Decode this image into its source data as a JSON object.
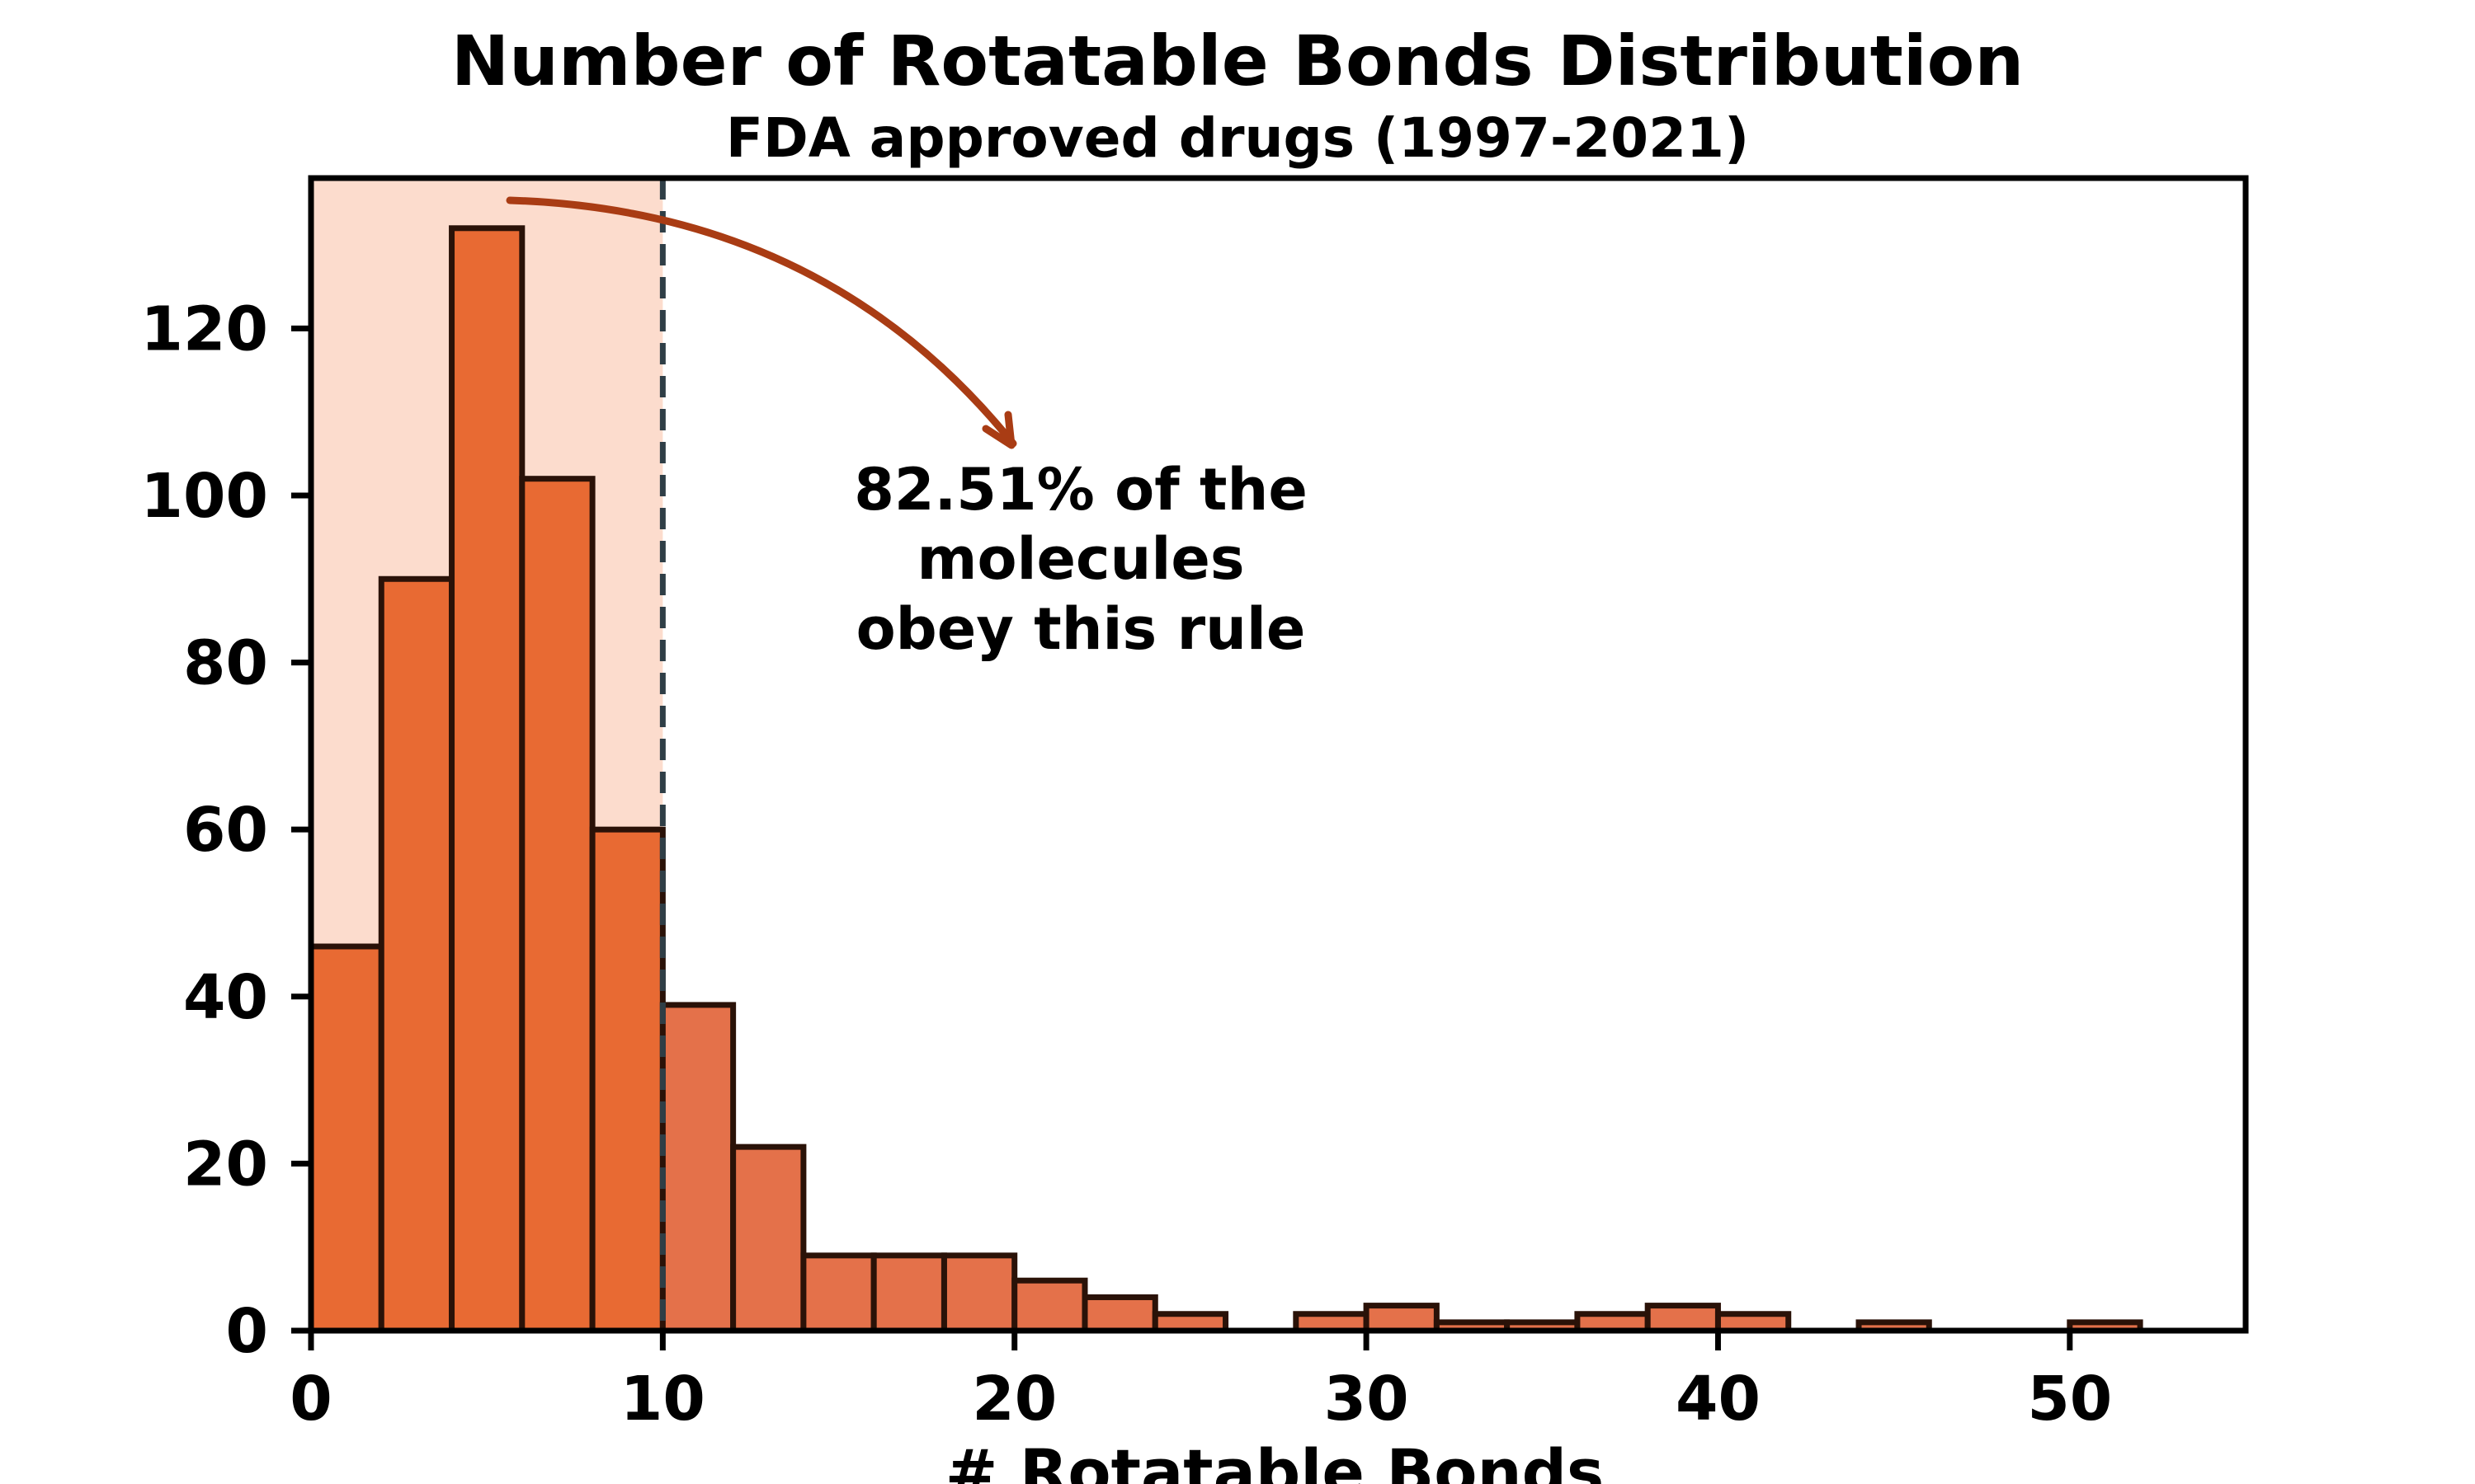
{
  "chart_data": {
    "type": "bar",
    "title": "Number of Rotatable Bonds Distribution",
    "subtitle": "FDA approved drugs (1997-2021)",
    "xlabel": "# Rotatable Bonds",
    "ylabel": "",
    "xlim": [
      0,
      55
    ],
    "ylim": [
      0,
      138
    ],
    "xticks": [
      0,
      10,
      20,
      30,
      40,
      50
    ],
    "yticks": [
      0,
      20,
      40,
      60,
      80,
      100,
      120
    ],
    "bin_width": 2,
    "bins": [
      {
        "x0": 0,
        "x1": 2,
        "count": 46
      },
      {
        "x0": 2,
        "x1": 4,
        "count": 90
      },
      {
        "x0": 4,
        "x1": 6,
        "count": 132
      },
      {
        "x0": 6,
        "x1": 8,
        "count": 102
      },
      {
        "x0": 8,
        "x1": 10,
        "count": 60
      },
      {
        "x0": 10,
        "x1": 12,
        "count": 39
      },
      {
        "x0": 12,
        "x1": 14,
        "count": 22
      },
      {
        "x0": 14,
        "x1": 16,
        "count": 9
      },
      {
        "x0": 16,
        "x1": 18,
        "count": 9
      },
      {
        "x0": 18,
        "x1": 20,
        "count": 9
      },
      {
        "x0": 20,
        "x1": 22,
        "count": 6
      },
      {
        "x0": 22,
        "x1": 24,
        "count": 4
      },
      {
        "x0": 24,
        "x1": 26,
        "count": 2
      },
      {
        "x0": 26,
        "x1": 28,
        "count": 0
      },
      {
        "x0": 28,
        "x1": 30,
        "count": 2
      },
      {
        "x0": 30,
        "x1": 32,
        "count": 3
      },
      {
        "x0": 32,
        "x1": 34,
        "count": 1
      },
      {
        "x0": 34,
        "x1": 36,
        "count": 1
      },
      {
        "x0": 36,
        "x1": 38,
        "count": 2
      },
      {
        "x0": 38,
        "x1": 40,
        "count": 3
      },
      {
        "x0": 40,
        "x1": 42,
        "count": 2
      },
      {
        "x0": 42,
        "x1": 44,
        "count": 0
      },
      {
        "x0": 44,
        "x1": 46,
        "count": 1
      },
      {
        "x0": 46,
        "x1": 48,
        "count": 0
      },
      {
        "x0": 48,
        "x1": 50,
        "count": 0
      },
      {
        "x0": 50,
        "x1": 52,
        "count": 1
      }
    ],
    "threshold": 10,
    "shaded_region": [
      0,
      10
    ],
    "annotation": {
      "lines": [
        "82.51% of the",
        "molecules",
        "obey this rule"
      ]
    },
    "grid": false,
    "legend": "none",
    "colors": {
      "bar_fill_in_rule": "#e86a33",
      "bar_fill_out_rule": "#e4714a",
      "bar_edge": "#2a1208",
      "shade": "#fcdccd",
      "threshold_line": "#2f3e46",
      "arrow": "#a93c14",
      "axis": "#000000"
    }
  }
}
